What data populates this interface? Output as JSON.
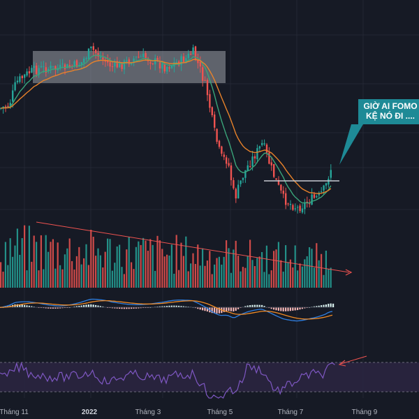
{
  "colors": {
    "background": "#161a25",
    "grid": "#232733",
    "up": "#26a69a",
    "down": "#ef5350",
    "ema_fast": "#3aa57a",
    "ema_slow": "#e8822a",
    "macd_line": "#2f7fe0",
    "signal_line": "#f08a24",
    "rsi": "#7e57c2",
    "rsi_band": "#2a2540",
    "annotation": "#ef5350",
    "callout": "#1e8a96",
    "consolidation_box": "#b9bcc4"
  },
  "callout": {
    "line1": "GIỜ AI FOMO",
    "line2": "KỆ NÓ ĐI ...."
  },
  "chart_data": [
    {
      "type": "candlestick",
      "title": "",
      "x_ticks": [
        "Tháng 11",
        "2022",
        "Tháng 3",
        "Tháng 5",
        "Tháng 7",
        "Tháng 9"
      ],
      "x_range": [
        "2021-10",
        "2022-09"
      ],
      "price_series_description": "daily candles: uptrend Oct–Nov 2021, sideways range Dec 2021–Apr 2022, sharp decline in May 2022, bottoming June–July 2022, rebound late July 2022",
      "moving_averages": [
        "fast",
        "slow"
      ],
      "annotations": [
        "consolidation box",
        "support line",
        "callout"
      ]
    },
    {
      "type": "bar",
      "title": "",
      "series": [
        {
          "values_description": "volume bars with a descending trendline"
        }
      ]
    },
    {
      "type": "line",
      "title": "",
      "series": [
        {
          "line": "MACD"
        },
        {
          "line": "Signal"
        },
        {
          "bars": "Histogram"
        }
      ]
    },
    {
      "type": "line",
      "title": "",
      "series": [
        {
          "line": "RSI"
        }
      ],
      "band": [
        30,
        70
      ]
    }
  ]
}
